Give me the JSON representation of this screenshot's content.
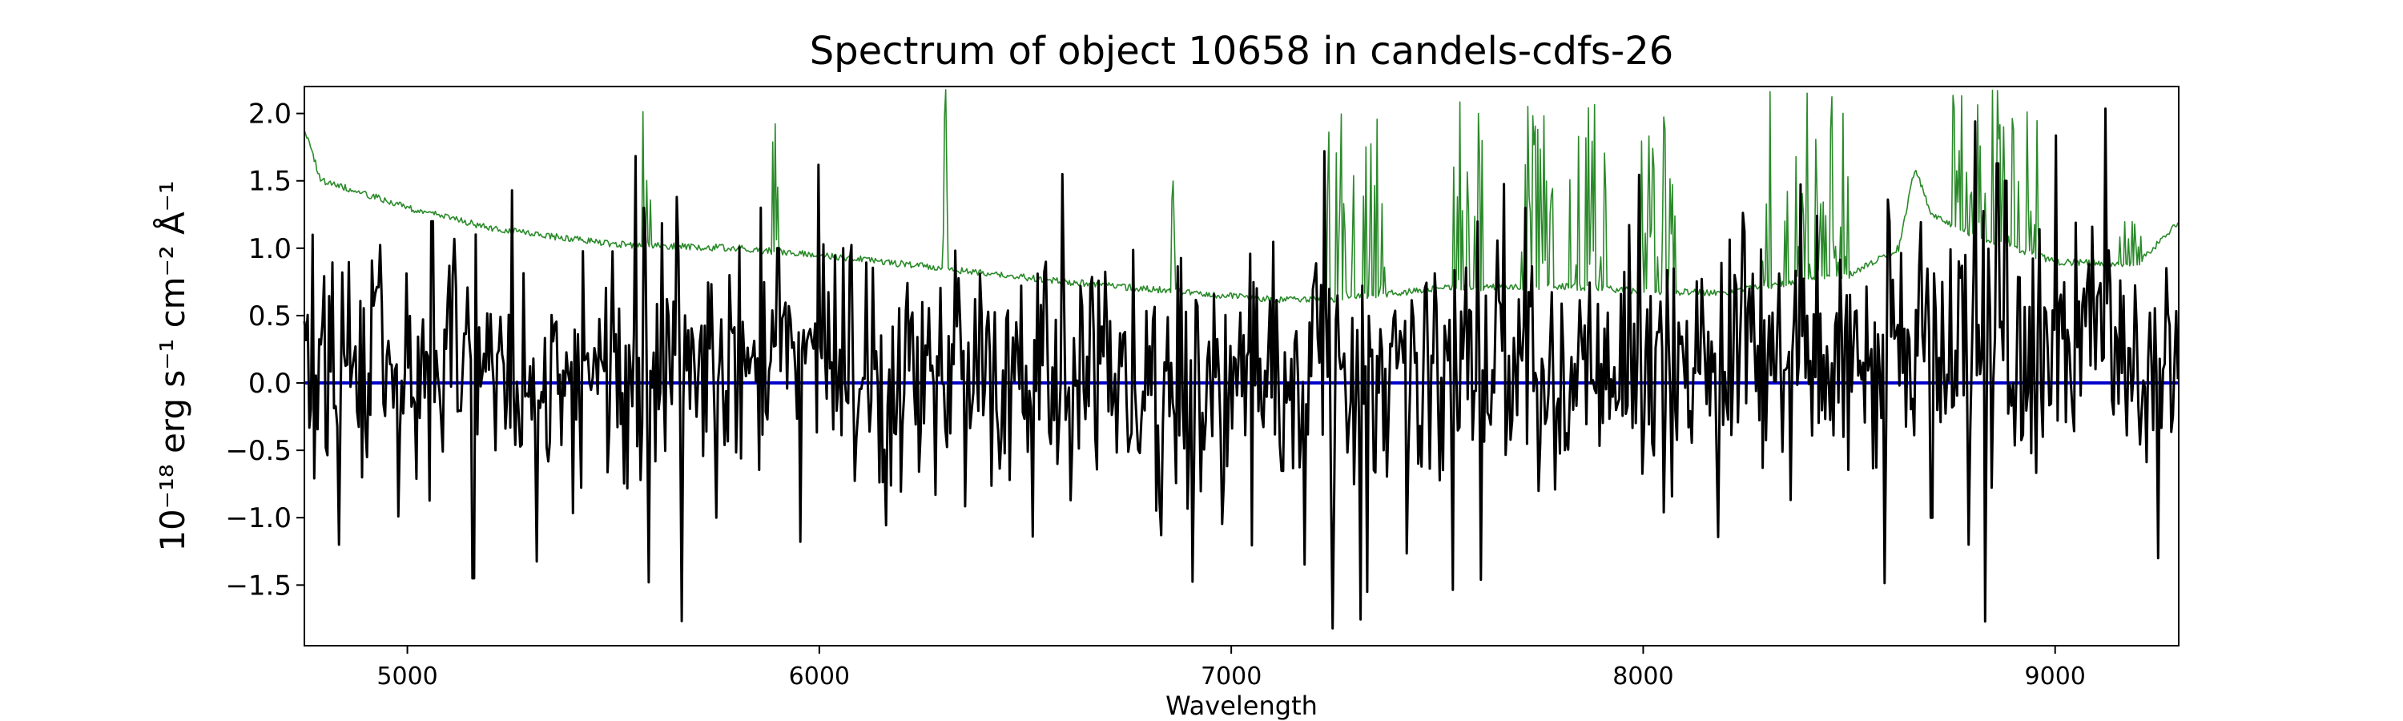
{
  "chart_data": {
    "type": "line",
    "title": "Spectrum of object 10658 in candels-cdfs-26",
    "xlabel": "Wavelength",
    "ylabel": "10⁻¹⁸ erg s⁻¹ cm⁻² Å⁻¹",
    "xlim": [
      4750,
      9300
    ],
    "ylim": [
      -1.95,
      2.2
    ],
    "xticks": [
      5000,
      6000,
      7000,
      8000,
      9000
    ],
    "yticks": [
      -1.5,
      -1.0,
      -0.5,
      0.0,
      0.5,
      1.0,
      1.5,
      2.0
    ],
    "grid": false,
    "legend": "none",
    "series": [
      {
        "role": "flux",
        "color": "#000000",
        "generated": true,
        "seed": 10658,
        "step": 4,
        "noise_base": 0.42,
        "noise_red": 0.25,
        "noise_blue": 0.55,
        "anchors": [
          [
            4750,
            0.2
          ],
          [
            5000,
            0.12
          ],
          [
            5500,
            0.08
          ],
          [
            6000,
            0.15
          ],
          [
            6500,
            0.0
          ],
          [
            7000,
            -0.02
          ],
          [
            7500,
            0.05
          ],
          [
            8000,
            0.1
          ],
          [
            8500,
            0.2
          ],
          [
            9000,
            0.3
          ],
          [
            9300,
            0.15
          ]
        ],
        "features": [
          [
            4770,
            1.1
          ],
          [
            5060,
            1.2
          ],
          [
            5160,
            -1.45
          ],
          [
            5575,
            1.3
          ],
          [
            5585,
            -1.48
          ],
          [
            5750,
            -1.0
          ],
          [
            5900,
            1.0
          ],
          [
            6610,
            -0.87
          ],
          [
            7225,
            1.72
          ],
          [
            7250,
            -0.8
          ],
          [
            7330,
            -1.55
          ],
          [
            7605,
            -1.46
          ],
          [
            7715,
            1.3
          ],
          [
            8050,
            -0.96
          ],
          [
            8700,
            -1.0
          ],
          [
            8790,
            -1.2
          ],
          [
            8830,
            -1.77
          ],
          [
            8860,
            1.63
          ],
          [
            8880,
            1.5
          ],
          [
            9250,
            -1.3
          ]
        ]
      },
      {
        "role": "error",
        "color": "#2a8a2a",
        "generated": true,
        "seed": 2026,
        "step": 3,
        "anchors": [
          [
            4750,
            1.9
          ],
          [
            4790,
            1.5
          ],
          [
            4850,
            1.45
          ],
          [
            5000,
            1.3
          ],
          [
            5200,
            1.15
          ],
          [
            5500,
            1.03
          ],
          [
            5800,
            1.0
          ],
          [
            6000,
            0.95
          ],
          [
            6300,
            0.85
          ],
          [
            6600,
            0.75
          ],
          [
            6900,
            0.67
          ],
          [
            7100,
            0.62
          ],
          [
            7250,
            0.62
          ],
          [
            7500,
            0.7
          ],
          [
            7800,
            0.72
          ],
          [
            8000,
            0.68
          ],
          [
            8200,
            0.67
          ],
          [
            8300,
            0.72
          ],
          [
            8500,
            0.8
          ],
          [
            8620,
            1.0
          ],
          [
            8660,
            1.6
          ],
          [
            8700,
            1.25
          ],
          [
            8800,
            1.1
          ],
          [
            9000,
            0.9
          ],
          [
            9200,
            0.88
          ],
          [
            9300,
            1.2
          ]
        ],
        "spikes": [
          [
            5570,
            5590,
            2.2
          ],
          [
            5880,
            5900,
            2.2
          ],
          [
            6290,
            6310,
            2.2
          ],
          [
            6850,
            6870,
            1.55
          ],
          [
            7230,
            7300,
            2.2
          ],
          [
            7320,
            7380,
            2.0
          ],
          [
            7540,
            7610,
            2.2
          ],
          [
            7700,
            7780,
            2.2
          ],
          [
            7820,
            7920,
            2.2
          ],
          [
            7990,
            8080,
            2.1
          ],
          [
            8280,
            8500,
            2.2
          ],
          [
            8750,
            8960,
            2.2
          ],
          [
            9150,
            9210,
            1.2
          ]
        ]
      },
      {
        "role": "zero",
        "color": "#0000cc",
        "values": [
          [
            4750,
            0.0
          ],
          [
            9300,
            0.0
          ]
        ]
      }
    ]
  }
}
